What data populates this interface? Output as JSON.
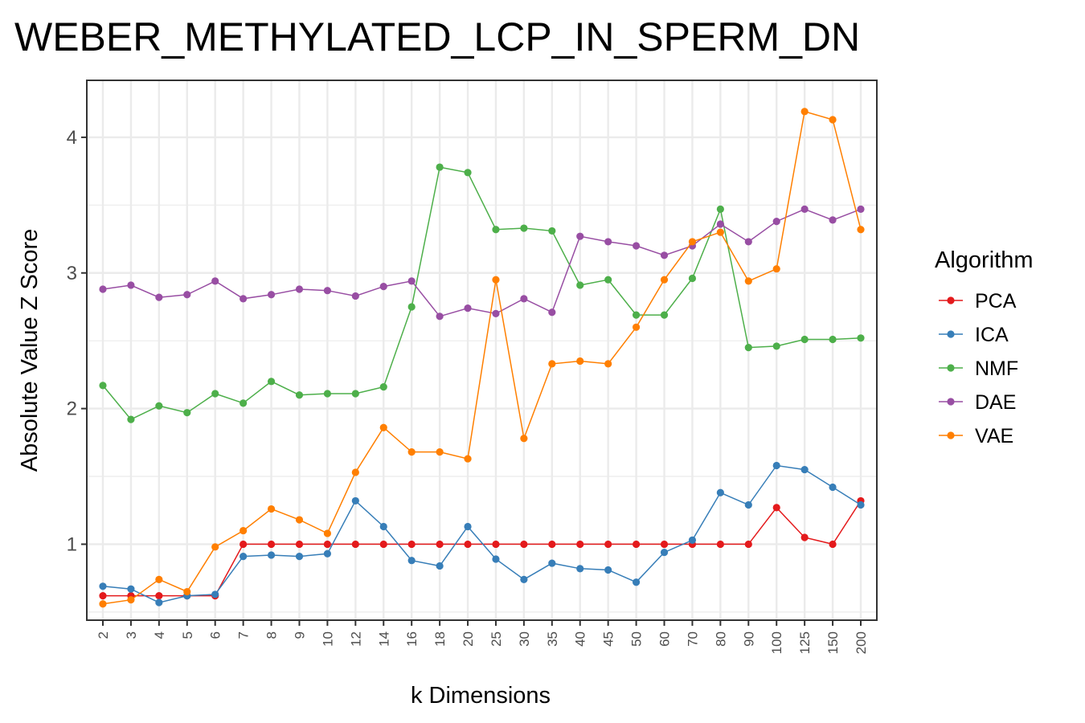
{
  "chart_data": {
    "type": "line",
    "title": "WEBER_METHYLATED_LCP_IN_SPERM_DN",
    "xlabel": "k Dimensions",
    "ylabel": "Absolute Value Z Score",
    "categories": [
      "2",
      "3",
      "4",
      "5",
      "6",
      "7",
      "8",
      "9",
      "10",
      "12",
      "14",
      "16",
      "18",
      "20",
      "25",
      "30",
      "35",
      "40",
      "45",
      "50",
      "60",
      "70",
      "80",
      "90",
      "100",
      "125",
      "150",
      "200"
    ],
    "ylim": [
      0.44,
      4.42
    ],
    "yticks": [
      1,
      2,
      3,
      4
    ],
    "grid": true,
    "legend": {
      "title": "Algorithm",
      "position": "right"
    },
    "series": [
      {
        "name": "PCA",
        "color": "#e41a1c",
        "values": [
          0.62,
          0.62,
          0.62,
          0.62,
          0.62,
          1.0,
          1.0,
          1.0,
          1.0,
          1.0,
          1.0,
          1.0,
          1.0,
          1.0,
          1.0,
          1.0,
          1.0,
          1.0,
          1.0,
          1.0,
          1.0,
          1.0,
          1.0,
          1.0,
          1.27,
          1.05,
          1.0,
          1.32
        ]
      },
      {
        "name": "ICA",
        "color": "#377eb8",
        "values": [
          0.69,
          0.67,
          0.57,
          0.62,
          0.63,
          0.91,
          0.92,
          0.91,
          0.93,
          1.32,
          1.13,
          0.88,
          0.84,
          1.13,
          0.89,
          0.74,
          0.86,
          0.82,
          0.81,
          0.72,
          0.94,
          1.03,
          1.38,
          1.29,
          1.58,
          1.55,
          1.42,
          1.29
        ]
      },
      {
        "name": "NMF",
        "color": "#4daf4a",
        "values": [
          2.17,
          1.92,
          2.02,
          1.97,
          2.11,
          2.04,
          2.2,
          2.1,
          2.11,
          2.11,
          2.16,
          2.75,
          3.78,
          3.74,
          3.32,
          3.33,
          3.31,
          2.91,
          2.95,
          2.69,
          2.69,
          2.96,
          3.47,
          2.45,
          2.46,
          2.51,
          2.51,
          2.52
        ]
      },
      {
        "name": "DAE",
        "color": "#984ea3",
        "values": [
          2.88,
          2.91,
          2.82,
          2.84,
          2.94,
          2.81,
          2.84,
          2.88,
          2.87,
          2.83,
          2.9,
          2.94,
          2.68,
          2.74,
          2.7,
          2.81,
          2.71,
          3.27,
          3.23,
          3.2,
          3.13,
          3.2,
          3.36,
          3.23,
          3.38,
          3.47,
          3.39,
          3.47
        ]
      },
      {
        "name": "VAE",
        "color": "#ff7f00",
        "values": [
          0.56,
          0.59,
          0.74,
          0.65,
          0.98,
          1.1,
          1.26,
          1.18,
          1.08,
          1.53,
          1.86,
          1.68,
          1.68,
          1.63,
          2.95,
          1.78,
          2.33,
          2.35,
          2.33,
          2.6,
          2.95,
          3.23,
          3.3,
          2.94,
          3.03,
          4.19,
          4.13,
          3.32
        ]
      }
    ]
  }
}
